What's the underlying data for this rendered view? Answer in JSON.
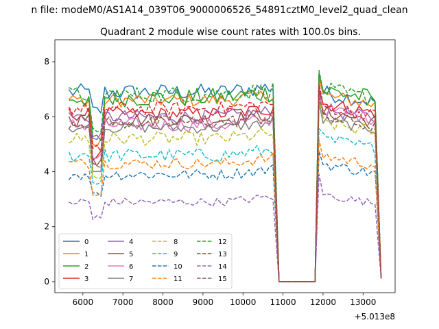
{
  "chart_data": {
    "type": "line",
    "suptitle": "n file: modeM0/AS1A14_039T06_9000006526_54891cztM0_level2_quad_clean",
    "title": "Quadrant 2 module wise count rates with 100.0s bins.",
    "xlabel": "",
    "ylabel": "",
    "x_offset_label": "+5.013e8",
    "xlim": [
      5300,
      13800
    ],
    "ylim": [
      -0.4,
      8.8
    ],
    "xticks": [
      6000,
      7000,
      8000,
      9000,
      10000,
      11000,
      12000,
      13000
    ],
    "yticks": [
      0,
      2,
      4,
      6,
      8
    ],
    "gap": {
      "from": 10900,
      "to": 11800
    },
    "segments": [
      {
        "x_start": 5650,
        "x_end": 10800
      },
      {
        "x_start": 11900,
        "x_end": 13450
      }
    ],
    "legend": {
      "placement": "lower-left",
      "columns": 4
    },
    "series": [
      {
        "name": "0",
        "color": "#1f77b4",
        "style": "solid",
        "level1": 6.9,
        "level2": 6.9,
        "dip": 6.2,
        "jitter": 0.3
      },
      {
        "name": "1",
        "color": "#ff7f0e",
        "style": "solid",
        "level1": 6.6,
        "level2": 6.8,
        "dip": 5.0,
        "jitter": 0.25
      },
      {
        "name": "2",
        "color": "#2ca02c",
        "style": "solid",
        "level1": 6.7,
        "level2": 7.0,
        "dip": 5.2,
        "jitter": 0.35
      },
      {
        "name": "3",
        "color": "#d62728",
        "style": "solid",
        "level1": 6.1,
        "level2": 6.5,
        "dip": 4.6,
        "jitter": 0.25
      },
      {
        "name": "4",
        "color": "#9467bd",
        "style": "solid",
        "level1": 6.0,
        "level2": 6.3,
        "dip": 5.2,
        "jitter": 0.25
      },
      {
        "name": "5",
        "color": "#8c564b",
        "style": "solid",
        "level1": 5.9,
        "level2": 6.2,
        "dip": 4.4,
        "jitter": 0.25
      },
      {
        "name": "6",
        "color": "#e377c2",
        "style": "solid",
        "level1": 5.7,
        "level2": 6.3,
        "dip": 4.5,
        "jitter": 0.25
      },
      {
        "name": "7",
        "color": "#7f7f7f",
        "style": "solid",
        "level1": 5.6,
        "level2": 5.9,
        "dip": 4.2,
        "jitter": 0.2
      },
      {
        "name": "8",
        "color": "#bcbd22",
        "style": "dashed",
        "level1": 5.2,
        "level2": 5.8,
        "dip": 3.8,
        "jitter": 0.25
      },
      {
        "name": "9",
        "color": "#17becf",
        "style": "dashed",
        "level1": 4.6,
        "level2": 5.2,
        "dip": 3.6,
        "jitter": 0.25
      },
      {
        "name": "10",
        "color": "#1f77b4",
        "style": "dashed",
        "level1": 3.9,
        "level2": 4.3,
        "dip": 3.1,
        "jitter": 0.2
      },
      {
        "name": "11",
        "color": "#ff7f0e",
        "style": "dashed",
        "level1": 4.3,
        "level2": 4.6,
        "dip": 3.3,
        "jitter": 0.2
      },
      {
        "name": "12",
        "color": "#2ca02c",
        "style": "dashed",
        "level1": 6.8,
        "level2": 7.0,
        "dip": 5.4,
        "jitter": 0.3
      },
      {
        "name": "13",
        "color": "#d62728",
        "style": "dashed",
        "level1": 6.3,
        "level2": 6.4,
        "dip": 4.8,
        "jitter": 0.25
      },
      {
        "name": "14",
        "color": "#9467bd",
        "style": "dashed",
        "level1": 2.9,
        "level2": 3.2,
        "dip": 2.3,
        "jitter": 0.15
      },
      {
        "name": "15",
        "color": "#8c564b",
        "style": "dashed",
        "level1": 5.8,
        "level2": 6.0,
        "dip": 4.3,
        "jitter": 0.25
      }
    ]
  }
}
